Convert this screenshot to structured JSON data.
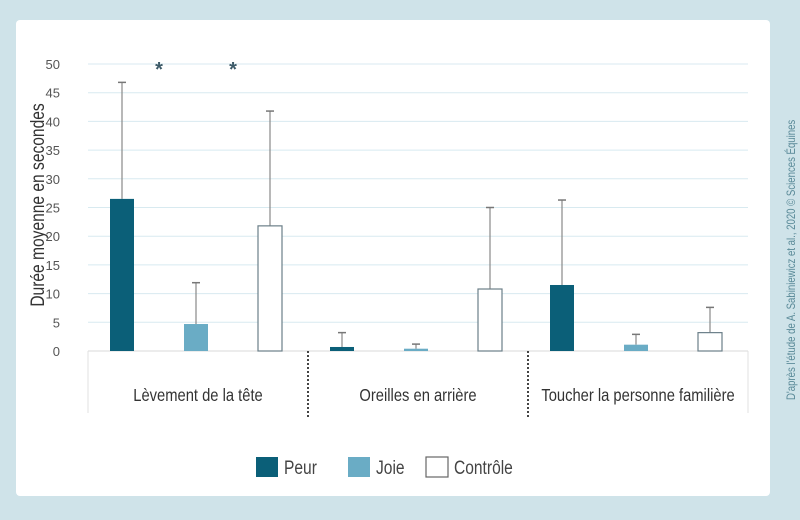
{
  "chart_data": {
    "type": "bar",
    "ylabel": "Durée moyenne en secondes",
    "xlabel": "",
    "ylim": [
      0,
      50
    ],
    "yticks": [
      0,
      5,
      10,
      15,
      20,
      25,
      30,
      35,
      40,
      45,
      50
    ],
    "grid": true,
    "legend_position": "bottom",
    "categories": [
      "Lèvement de la tête",
      "Oreilles en arrière",
      "Toucher la personne familière"
    ],
    "series": [
      {
        "name": "Peur",
        "color": "#0b5f78",
        "values": [
          26.5,
          0.7,
          11.5
        ],
        "error_upper": [
          46.8,
          3.2,
          26.3
        ]
      },
      {
        "name": "Joie",
        "color": "#6aacc5",
        "values": [
          4.7,
          0.4,
          1.1
        ],
        "error_upper": [
          11.9,
          1.2,
          2.9
        ]
      },
      {
        "name": "Contrôle",
        "color": "#ffffff",
        "values": [
          21.8,
          10.8,
          3.2
        ],
        "error_upper": [
          41.8,
          25.0,
          7.6
        ]
      }
    ],
    "annotations": [
      {
        "text": "*",
        "category": "Lèvement de la tête",
        "between": [
          "Peur",
          "Joie"
        ]
      },
      {
        "text": "*",
        "category": "Lèvement de la tête",
        "between": [
          "Joie",
          "Contrôle"
        ]
      }
    ]
  },
  "credit": "D'après l'étude de A. Sabiniewicz et al., 2020 © Sciences Équines"
}
